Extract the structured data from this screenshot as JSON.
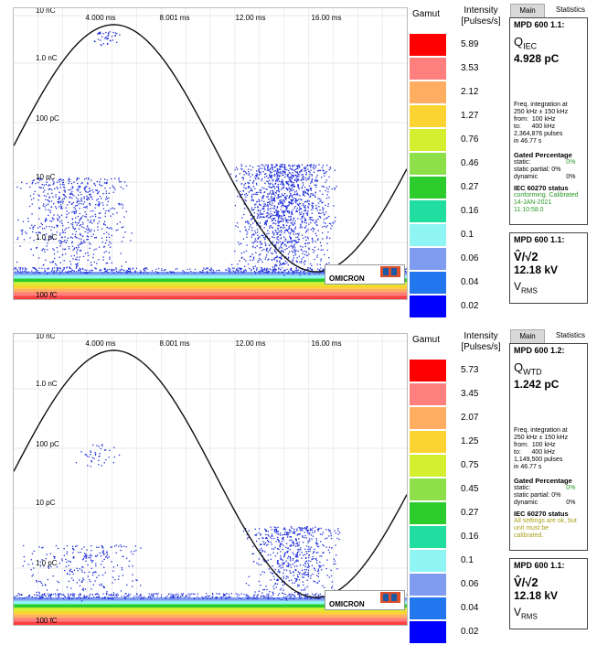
{
  "panels": [
    {
      "id": "top",
      "x_ticks": [
        "4.000 ms",
        "8.001 ms",
        "12.00 ms",
        "16.00 ms"
      ],
      "y_ticks": [
        "10 nC",
        "1.0 nC",
        "100 pC",
        "10 pC",
        "1.0 pC"
      ],
      "y_bottom": "100 fC",
      "logo": "OMICRON",
      "gamut_label": "Gamut",
      "intensity_label": "Intensity",
      "intensity_unit": "[Pulses/s]",
      "legend": [
        {
          "color": "#ff0000",
          "value": "5.89"
        },
        {
          "color": "#ff7f7f",
          "value": "3.53"
        },
        {
          "color": "#ffad60",
          "value": "2.12"
        },
        {
          "color": "#fcd432",
          "value": "1.27"
        },
        {
          "color": "#d4ee30",
          "value": "0.76"
        },
        {
          "color": "#8ee04a",
          "value": "0.46"
        },
        {
          "color": "#2ccc2c",
          "value": "0.27"
        },
        {
          "color": "#1fdea0",
          "value": "0.16"
        },
        {
          "color": "#8ff4f4",
          "value": "0.1"
        },
        {
          "color": "#7f9cf0",
          "value": "0.06"
        },
        {
          "color": "#2277ee",
          "value": "0.04"
        },
        {
          "color": "#0000ff",
          "value": "0.02"
        }
      ],
      "tabs": {
        "main": "Main",
        "statistics": "Statistics"
      },
      "box1": {
        "header": "MPD 600 1.1:",
        "q_symbol": "Q",
        "q_sub": "IEC",
        "q_value": "4.928 pC",
        "freq_line1": "Freq. integration at",
        "freq_line2": "250 kHz ± 150 kHz",
        "from_label": "from:",
        "from_value": "100 kHz",
        "to_label": "to:",
        "to_value": "400 kHz",
        "pulses": "2,364,876 pulses",
        "duration": "in 46.77 s",
        "gated_title": "Gated Percentage",
        "static_label": "static:",
        "static_value": "0%",
        "static_partial_label": "static partial:",
        "static_partial_value": "0%",
        "dynamic_label": "dynamic",
        "dynamic_value": "0%",
        "iec_title": "IEC 60270 status",
        "iec_status_line1": "conforming. Calibrated",
        "iec_status_line2": "14-JAN-2021",
        "iec_status_line3": "11:10:58.0"
      },
      "box2": {
        "header": "MPD 600 1.1:",
        "v_symbol": "V̂/√2",
        "v_value": "12.18 kV",
        "vrms_symbol": "V",
        "vrms_sub": "RMS"
      }
    },
    {
      "id": "bottom",
      "x_ticks": [
        "4.000 ms",
        "8.001 ms",
        "12.00 ms",
        "16.00 ms"
      ],
      "y_ticks": [
        "10 nC",
        "1.0 nC",
        "100 pC",
        "10 pC",
        "1.0 pC"
      ],
      "y_bottom": "100 fC",
      "logo": "OMICRON",
      "gamut_label": "Gamut",
      "intensity_label": "Intensity",
      "intensity_unit": "[Pulses/s]",
      "legend": [
        {
          "color": "#ff0000",
          "value": "5.73"
        },
        {
          "color": "#ff7f7f",
          "value": "3.45"
        },
        {
          "color": "#ffad60",
          "value": "2.07"
        },
        {
          "color": "#fcd432",
          "value": "1.25"
        },
        {
          "color": "#d4ee30",
          "value": "0.75"
        },
        {
          "color": "#8ee04a",
          "value": "0.45"
        },
        {
          "color": "#2ccc2c",
          "value": "0.27"
        },
        {
          "color": "#1fdea0",
          "value": "0.16"
        },
        {
          "color": "#8ff4f4",
          "value": "0.1"
        },
        {
          "color": "#7f9cf0",
          "value": "0.06"
        },
        {
          "color": "#2277ee",
          "value": "0.04"
        },
        {
          "color": "#0000ff",
          "value": "0.02"
        }
      ],
      "tabs": {
        "main": "Main",
        "statistics": "Statistics"
      },
      "box1": {
        "header": "MPD 600 1.2:",
        "q_symbol": "Q",
        "q_sub": "WTD",
        "q_value": "1.242 pC",
        "freq_line1": "Freq. integration at",
        "freq_line2": "250 kHz ± 150 kHz",
        "from_label": "from:",
        "from_value": "100 kHz",
        "to_label": "to:",
        "to_value": "400 kHz",
        "pulses": "1,149,500 pulses",
        "duration": "in 46.77 s",
        "gated_title": "Gated Percentage",
        "static_label": "static:",
        "static_value": "0%",
        "static_partial_label": "static partial:",
        "static_partial_value": "0%",
        "dynamic_label": "dynamic",
        "dynamic_value": "0%",
        "iec_title": "IEC 60270 status",
        "iec_status_line1": "All settings are ok, but",
        "iec_status_line2": "unit must be",
        "iec_status_line3": "calibrated."
      },
      "box2": {
        "header": "MPD 600 1.1:",
        "v_symbol": "V̂/√2",
        "v_value": "12.18 kV",
        "vrms_symbol": "V",
        "vrms_sub": "RMS"
      }
    }
  ]
}
